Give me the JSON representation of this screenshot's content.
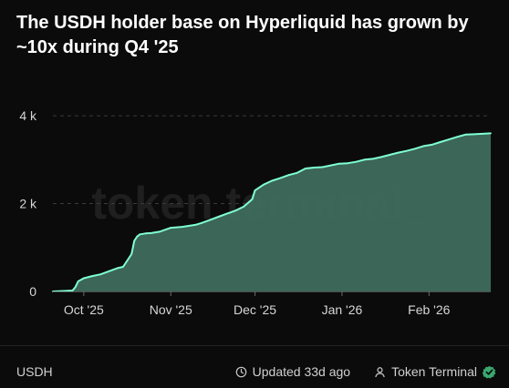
{
  "title": "The USDH holder base on Hyperliquid has grown by ~10x during Q4 '25",
  "watermark": "token terminal_",
  "footer": {
    "asset": "USDH",
    "updated": "Updated 33d ago",
    "source": "Token Terminal"
  },
  "colors": {
    "line": "#7fffd4",
    "area": "#3f6b5d",
    "grid": "#3a3a3a",
    "verified": "#3aa76d"
  },
  "chart_data": {
    "type": "area",
    "title": "The USDH holder base on Hyperliquid has grown by ~10x during Q4 '25",
    "xlabel": "",
    "ylabel": "",
    "ylim": [
      0,
      4500
    ],
    "yticks": [
      0,
      2000,
      4000
    ],
    "ytick_labels": [
      "0",
      "2 k",
      "4 k"
    ],
    "xlim": [
      "2025-09-20",
      "2026-02-23"
    ],
    "xticks": [
      "2025-10-01",
      "2025-11-01",
      "2025-12-01",
      "2026-01-01",
      "2026-02-01"
    ],
    "xtick_labels": [
      "Oct '25",
      "Nov '25",
      "Dec '25",
      "Jan '26",
      "Feb '26"
    ],
    "grid": true,
    "series": [
      {
        "x": [
          "2025-09-20",
          "2025-09-24",
          "2025-09-27",
          "2025-09-28",
          "2025-09-29",
          "2025-10-01",
          "2025-10-04",
          "2025-10-07",
          "2025-10-10",
          "2025-10-13",
          "2025-10-15",
          "2025-10-18",
          "2025-10-19",
          "2025-10-20",
          "2025-10-21",
          "2025-10-23",
          "2025-10-25",
          "2025-10-28",
          "2025-11-01",
          "2025-11-05",
          "2025-11-10",
          "2025-11-12",
          "2025-11-15",
          "2025-11-18",
          "2025-11-21",
          "2025-11-24",
          "2025-11-27",
          "2025-11-30",
          "2025-12-01",
          "2025-12-04",
          "2025-12-07",
          "2025-12-10",
          "2025-12-13",
          "2025-12-16",
          "2025-12-19",
          "2025-12-22",
          "2025-12-25",
          "2025-12-28",
          "2025-12-31",
          "2026-01-03",
          "2026-01-06",
          "2026-01-09",
          "2026-01-12",
          "2026-01-15",
          "2026-01-18",
          "2026-01-21",
          "2026-01-24",
          "2026-01-27",
          "2026-01-30",
          "2026-02-02",
          "2026-02-05",
          "2026-02-08",
          "2026-02-11",
          "2026-02-14",
          "2026-02-17",
          "2026-02-20",
          "2026-02-23"
        ],
        "values": [
          0,
          10,
          20,
          100,
          230,
          300,
          350,
          390,
          460,
          530,
          560,
          850,
          1150,
          1250,
          1300,
          1320,
          1330,
          1360,
          1450,
          1470,
          1520,
          1560,
          1630,
          1700,
          1770,
          1840,
          1930,
          2100,
          2300,
          2430,
          2520,
          2580,
          2650,
          2700,
          2800,
          2820,
          2830,
          2870,
          2910,
          2920,
          2950,
          3000,
          3020,
          3060,
          3110,
          3160,
          3200,
          3250,
          3310,
          3340,
          3400,
          3460,
          3520,
          3570,
          3580,
          3590,
          3600
        ]
      }
    ]
  }
}
